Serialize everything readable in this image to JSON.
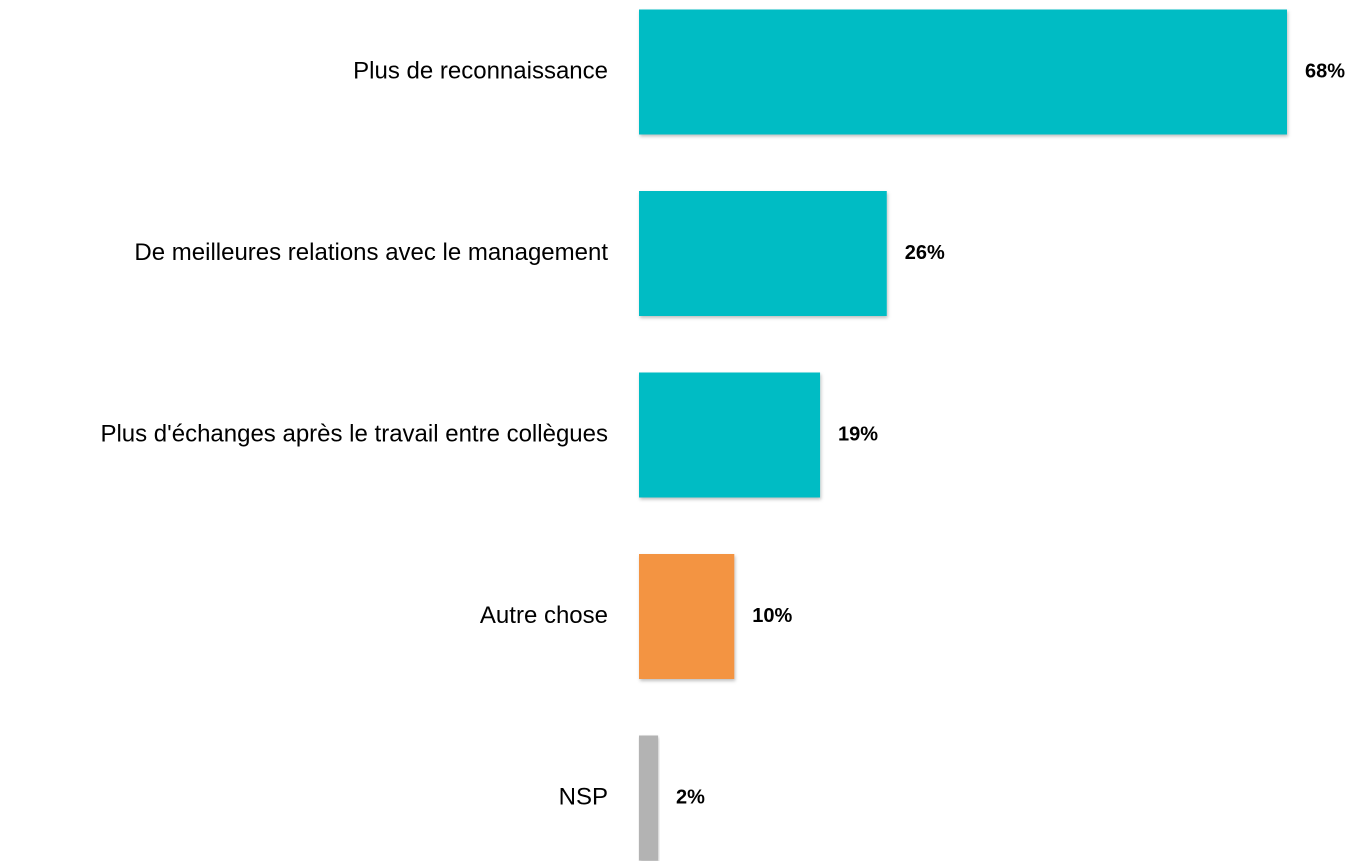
{
  "chart_data": {
    "type": "barh",
    "categories": [
      "Plus de reconnaissance",
      "De meilleures relations avec le management",
      "Plus d'échanges après le travail entre collègues",
      "Autre chose",
      "NSP"
    ],
    "values": [
      68,
      26,
      19,
      10,
      2
    ],
    "value_labels": [
      "68%",
      "26%",
      "19%",
      "10%",
      "2%"
    ],
    "colors": [
      "#00bcc4",
      "#00bcc4",
      "#00bcc4",
      "#f39442",
      "#b3b3b3"
    ]
  }
}
